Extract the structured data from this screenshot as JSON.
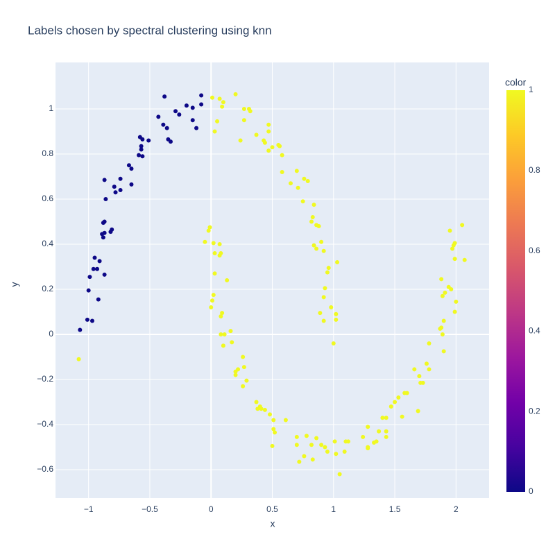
{
  "chart_data": {
    "type": "scatter",
    "title": "Labels chosen by spectral clustering using knn",
    "x_label": "x",
    "y_label": "y",
    "colorbar_title": "color",
    "colorscale": [
      "#0d0887",
      "#46039f",
      "#7201a8",
      "#9c179e",
      "#bd3786",
      "#d8576b",
      "#ed7953",
      "#fb9f3a",
      "#fdca26",
      "#f0f921"
    ],
    "clim": [
      0,
      1
    ],
    "cticks": [
      0,
      0.2,
      0.4,
      0.6,
      0.8,
      1
    ],
    "xlim": [
      -1.27,
      2.27
    ],
    "ylim": [
      -0.726,
      1.206
    ],
    "xticks": [
      {
        "value": -1,
        "label": "−1"
      },
      {
        "value": -0.5,
        "label": "−0.5"
      },
      0,
      0.5,
      1,
      1.5,
      2
    ],
    "yticks": [
      {
        "value": -0.6,
        "label": "−0.6"
      },
      {
        "value": -0.4,
        "label": "−0.4"
      },
      {
        "value": -0.2,
        "label": "−0.2"
      },
      0,
      0.2,
      0.4,
      0.6,
      0.8,
      1
    ],
    "grid": true,
    "x": [
      -1.07,
      -1.01,
      -0.97,
      -1.0,
      -0.99,
      -0.96,
      -0.95,
      -0.93,
      -0.92,
      -0.91,
      -0.87,
      -0.88,
      -0.89,
      -0.87,
      -0.88,
      -0.87,
      -0.82,
      -0.81,
      -0.86,
      -0.87,
      -0.79,
      -0.78,
      -0.74,
      -0.74,
      -0.67,
      -0.65,
      -0.65,
      -0.59,
      -0.56,
      -0.57,
      -0.57,
      -0.58,
      -0.56,
      -0.51,
      -0.43,
      -0.39,
      -0.38,
      -0.36,
      -0.35,
      -0.33,
      -0.29,
      -0.26,
      -0.2,
      -0.15,
      -0.15,
      -0.12,
      -0.08,
      -0.08,
      -1.08,
      0.01,
      0.07,
      0.09,
      0.1,
      0.2,
      0.03,
      0.05,
      0.24,
      0.27,
      0.27,
      0.31,
      0.32,
      0.37,
      0.43,
      0.44,
      0.47,
      0.47,
      0.47,
      0.5,
      0.55,
      0.56,
      0.58,
      0.58,
      0.65,
      0.7,
      0.71,
      0.76,
      0.79,
      0.75,
      0.82,
      0.83,
      0.84,
      0.86,
      0.88,
      0.84,
      0.86,
      0.9,
      0.92,
      0.95,
      0.96,
      0.93,
      0.92,
      0.98,
      0.89,
      0.92,
      1.02,
      1.02,
      1.03,
      1.0,
      -0.05,
      -0.02,
      -0.01,
      0.02,
      0.07,
      0.03,
      0.07,
      0.08,
      0.03,
      0.13,
      0.02,
      0.01,
      0.0,
      0.08,
      0.09,
      0.08,
      0.11,
      0.1,
      0.16,
      0.17,
      0.2,
      0.2,
      0.22,
      0.26,
      0.27,
      0.29,
      0.26,
      0.37,
      0.38,
      0.4,
      0.41,
      0.44,
      0.48,
      0.51,
      0.51,
      0.52,
      0.5,
      0.61,
      0.7,
      0.7,
      0.72,
      0.76,
      0.78,
      0.82,
      0.83,
      0.86,
      0.9,
      0.93,
      0.95,
      1.01,
      1.02,
      1.05,
      1.09,
      1.1,
      1.12,
      1.24,
      1.28,
      1.28,
      1.28,
      1.33,
      1.35,
      1.37,
      1.4,
      1.43,
      1.43,
      1.43,
      1.47,
      1.5,
      1.53,
      1.56,
      1.58,
      1.6,
      1.66,
      1.69,
      1.7,
      1.71,
      1.73,
      1.76,
      1.78,
      1.78,
      1.87,
      1.88,
      1.89,
      1.88,
      1.89,
      1.9,
      1.9,
      1.91,
      1.94,
      1.96,
      1.95,
      1.97,
      1.98,
      1.99,
      1.99,
      2.0,
      1.99,
      2.05,
      2.07
    ],
    "y": [
      0.02,
      0.065,
      0.06,
      0.195,
      0.255,
      0.29,
      0.34,
      0.29,
      0.155,
      0.325,
      0.265,
      0.43,
      0.445,
      0.45,
      0.495,
      0.5,
      0.455,
      0.465,
      0.6,
      0.685,
      0.655,
      0.63,
      0.64,
      0.69,
      0.75,
      0.735,
      0.665,
      0.795,
      0.79,
      0.82,
      0.835,
      0.875,
      0.865,
      0.86,
      0.965,
      0.93,
      1.055,
      0.915,
      0.865,
      0.855,
      0.99,
      0.975,
      1.015,
      1.005,
      0.95,
      0.915,
      1.06,
      1.02,
      -0.11,
      1.05,
      1.045,
      1.01,
      1.03,
      1.065,
      0.9,
      0.945,
      0.86,
      1.0,
      0.95,
      1.0,
      0.99,
      0.885,
      0.86,
      0.85,
      0.93,
      0.9,
      0.815,
      0.83,
      0.84,
      0.835,
      0.72,
      0.795,
      0.67,
      0.725,
      0.65,
      0.69,
      0.68,
      0.59,
      0.5,
      0.52,
      0.575,
      0.485,
      0.48,
      0.395,
      0.38,
      0.41,
      0.37,
      0.275,
      0.295,
      0.205,
      0.165,
      0.12,
      0.095,
      0.06,
      0.09,
      0.065,
      0.32,
      -0.04,
      0.41,
      0.46,
      0.475,
      0.405,
      0.4,
      0.36,
      0.35,
      0.36,
      0.27,
      0.24,
      0.175,
      0.15,
      0.12,
      0.08,
      0.095,
      0.0,
      0.0,
      -0.05,
      0.015,
      -0.035,
      -0.165,
      -0.18,
      -0.155,
      -0.1,
      -0.145,
      -0.205,
      -0.23,
      -0.3,
      -0.33,
      -0.32,
      -0.33,
      -0.335,
      -0.355,
      -0.38,
      -0.42,
      -0.435,
      -0.495,
      -0.38,
      -0.455,
      -0.49,
      -0.565,
      -0.54,
      -0.45,
      -0.49,
      -0.555,
      -0.46,
      -0.49,
      -0.5,
      -0.52,
      -0.475,
      -0.53,
      -0.62,
      -0.52,
      -0.475,
      -0.475,
      -0.455,
      -0.41,
      -0.505,
      -0.5,
      -0.48,
      -0.475,
      -0.43,
      -0.37,
      -0.37,
      -0.43,
      -0.455,
      -0.32,
      -0.3,
      -0.28,
      -0.365,
      -0.26,
      -0.26,
      -0.155,
      -0.34,
      -0.185,
      -0.215,
      -0.215,
      -0.13,
      -0.155,
      -0.04,
      0.025,
      0.03,
      0.0,
      0.245,
      0.17,
      0.06,
      -0.075,
      0.185,
      0.21,
      0.2,
      0.46,
      0.38,
      0.395,
      0.405,
      0.335,
      0.145,
      0.1,
      0.485,
      0.33
    ],
    "color": [
      0,
      0,
      0,
      0,
      0,
      0,
      0,
      0,
      0,
      0,
      0,
      0,
      0,
      0,
      0,
      0,
      0,
      0,
      0,
      0,
      0,
      0,
      0,
      0,
      0,
      0,
      0,
      0,
      0,
      0,
      0,
      0,
      0,
      0,
      0,
      0,
      0,
      0,
      0,
      0,
      0,
      0,
      0,
      0,
      0,
      0,
      0,
      0,
      1,
      1,
      1,
      1,
      1,
      1,
      1,
      1,
      1,
      1,
      1,
      1,
      1,
      1,
      1,
      1,
      1,
      1,
      1,
      1,
      1,
      1,
      1,
      1,
      1,
      1,
      1,
      1,
      1,
      1,
      1,
      1,
      1,
      1,
      1,
      1,
      1,
      1,
      1,
      1,
      1,
      1,
      1,
      1,
      1,
      1,
      1,
      1,
      1,
      1,
      1,
      1,
      1,
      1,
      1,
      1,
      1,
      1,
      1,
      1,
      1,
      1,
      1,
      1,
      1,
      1,
      1,
      1,
      1,
      1,
      1,
      1,
      1,
      1,
      1,
      1,
      1,
      1,
      1,
      1,
      1,
      1,
      1,
      1,
      1,
      1,
      1,
      1,
      1,
      1,
      1,
      1,
      1,
      1,
      1,
      1,
      1,
      1,
      1,
      1,
      1,
      1,
      1,
      1,
      1,
      1,
      1,
      1,
      1,
      1,
      1,
      1,
      1,
      1,
      1,
      1,
      1,
      1,
      1,
      1,
      1,
      1,
      1,
      1,
      1,
      1,
      1,
      1,
      1,
      1,
      1,
      1,
      1,
      1,
      1,
      1,
      1,
      1,
      1,
      1,
      1,
      1,
      1,
      1,
      1,
      1,
      1,
      1,
      1
    ]
  }
}
